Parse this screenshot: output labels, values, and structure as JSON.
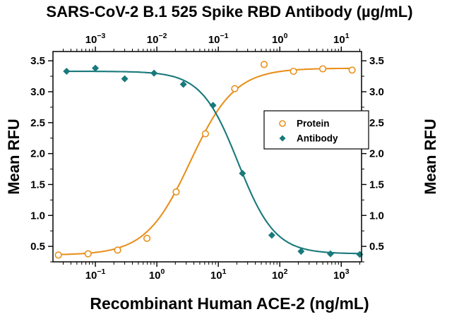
{
  "chart_data": {
    "type": "line",
    "title": "SARS-CoV-2 B.1 525 Spike RBD Antibody (µg/mL)",
    "top_xlabel": "SARS-CoV-2 B.1 525 Spike RBD Antibody (µg/mL)",
    "bottom_xlabel": "Recombinant Human ACE-2 (ng/mL)",
    "left_ylabel": "Mean RFU",
    "right_ylabel": "Mean RFU",
    "background": "#FFFFFF",
    "grid": false,
    "ylim": [
      0.25,
      3.65
    ],
    "y_major_ticks": [
      0.5,
      1.0,
      1.5,
      2.0,
      2.5,
      3.0,
      3.5
    ],
    "y_minor_step": 0.25,
    "bottom_axis": {
      "scale": "log",
      "unit": "ng/mL",
      "log_range": [
        -1.69,
        3.33
      ],
      "tick_exponents": [
        -1,
        0,
        1,
        2,
        3
      ]
    },
    "top_axis": {
      "scale": "log",
      "unit": "µg/mL",
      "log_range": [
        -3.69,
        1.33
      ],
      "tick_exponents": [
        -3,
        -2,
        -1,
        0,
        1
      ]
    },
    "series": [
      {
        "name": "Protein",
        "axis": "bottom",
        "color": "#E8911C",
        "marker": "open-circle",
        "x": [
          0.025,
          0.076,
          0.23,
          0.69,
          2.06,
          6.17,
          18.5,
          55.6,
          167,
          500,
          1500
        ],
        "y": [
          0.36,
          0.38,
          0.44,
          0.63,
          1.38,
          2.32,
          3.05,
          3.44,
          3.33,
          3.37,
          3.35
        ],
        "fit": {
          "min": 0.36,
          "max": 3.38,
          "c50": 3.5,
          "hill": 1.2,
          "direction": "up"
        }
      },
      {
        "name": "Antibody",
        "axis": "top",
        "color": "#19797B",
        "marker": "filled-diamond",
        "x": [
          0.00034,
          0.001,
          0.003,
          0.009,
          0.027,
          0.082,
          0.247,
          0.741,
          2.22,
          6.67,
          20
        ],
        "y": [
          3.33,
          3.38,
          3.21,
          3.3,
          3.12,
          2.78,
          1.68,
          0.68,
          0.42,
          0.38,
          0.37
        ],
        "fit": {
          "min": 0.38,
          "max": 3.33,
          "c50": 0.21,
          "hill": 1.45,
          "direction": "down"
        }
      }
    ],
    "legend": {
      "position": "center-right",
      "border": true,
      "entries": [
        "Protein",
        "Antibody"
      ]
    }
  }
}
